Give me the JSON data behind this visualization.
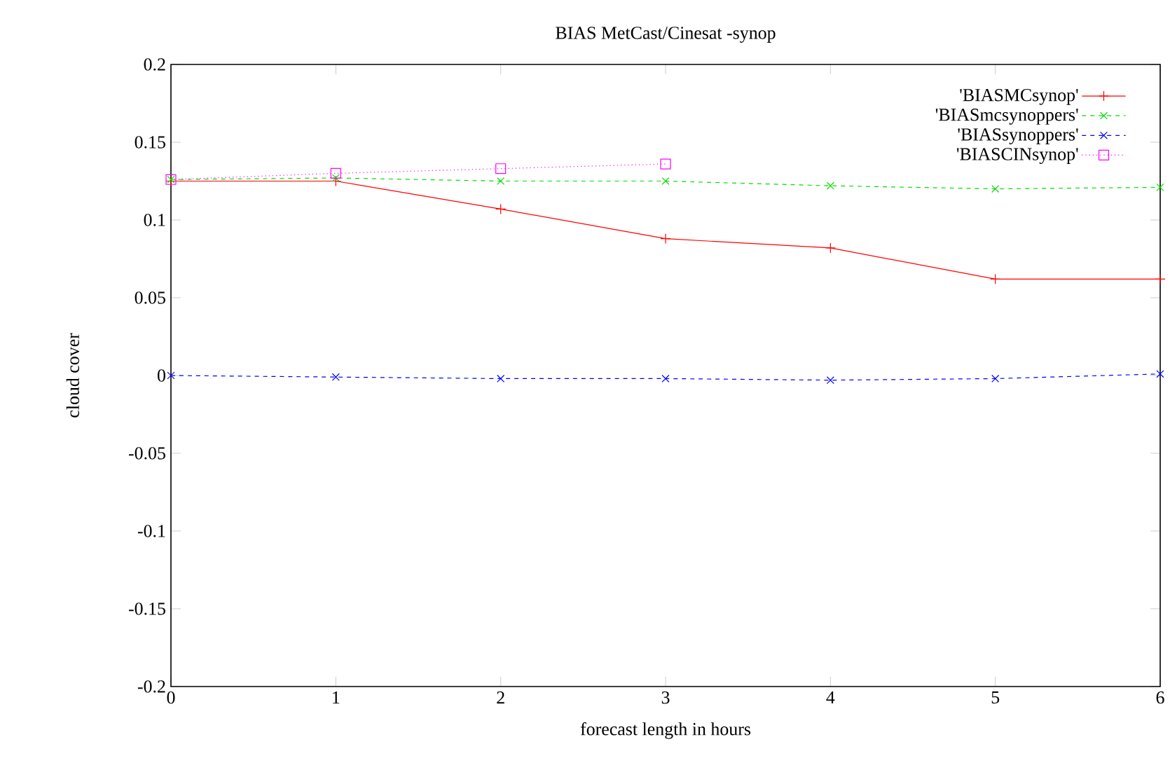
{
  "chart_data": {
    "type": "line",
    "title": "BIAS MetCast/Cinesat -synop",
    "xlabel": "forecast length in hours",
    "ylabel": "cloud cover",
    "x": [
      0,
      1,
      2,
      3,
      4,
      5,
      6
    ],
    "series": [
      {
        "name": "'BIASMCsynop'",
        "color": "#ff0000",
        "marker": "plus",
        "line_style": "solid",
        "values": [
          0.125,
          0.125,
          0.107,
          0.088,
          0.082,
          0.062,
          0.062
        ]
      },
      {
        "name": "'BIASmcsynoppers'",
        "color": "#00dd00",
        "marker": "cross",
        "line_style": "dashed",
        "values": [
          0.126,
          0.127,
          0.125,
          0.125,
          0.122,
          0.12,
          0.121
        ]
      },
      {
        "name": "'BIASsynoppers'",
        "color": "#0000ff",
        "marker": "cross",
        "line_style": "dashed",
        "values": [
          0,
          -0.001,
          -0.002,
          -0.002,
          -0.003,
          -0.002,
          0.001
        ]
      },
      {
        "name": "'BIASCINsynop'",
        "color": "#ff00ff",
        "marker": "square",
        "line_style": "dotted",
        "values": [
          0.126,
          0.13,
          0.133,
          0.136,
          null,
          null,
          null
        ]
      }
    ],
    "xlim": [
      0,
      6
    ],
    "xticks": [
      0,
      1,
      2,
      3,
      4,
      5,
      6
    ],
    "ylim": [
      -0.2,
      0.2
    ],
    "yticks": [
      -0.2,
      -0.15,
      -0.1,
      -0.05,
      0,
      0.05,
      0.1,
      0.15,
      0.2
    ],
    "grid": false,
    "legend": "top right"
  }
}
